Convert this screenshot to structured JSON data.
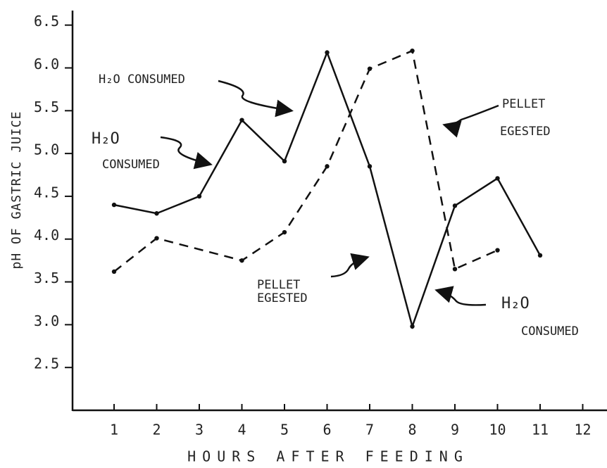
{
  "chart_data": {
    "type": "line",
    "ylabel": "pH OF GASTRIC JUICE",
    "xlabel": "HOURS AFTER FEEDING",
    "xlim": [
      0,
      12.57
    ],
    "xticks": [
      1,
      2,
      3,
      4,
      5,
      6,
      7,
      8,
      9,
      10,
      11,
      12
    ],
    "ylim": [
      2.0,
      6.67
    ],
    "yticks": [
      {
        "value": 2.5,
        "label": "2.5"
      },
      {
        "value": 3,
        "label": "3.0"
      },
      {
        "value": 3.5,
        "label": "3.5"
      },
      {
        "value": 4,
        "label": "4.0"
      },
      {
        "value": 4.5,
        "label": "4.5"
      },
      {
        "value": 5,
        "label": "5.0"
      },
      {
        "value": 5.5,
        "label": "5.5"
      },
      {
        "value": 6,
        "label": "6.0"
      },
      {
        "value": 6.5,
        "label": "6.5"
      }
    ],
    "series": [
      {
        "color": "#111111",
        "dashed": false,
        "x": [
          1,
          2,
          3,
          4,
          5,
          6,
          7,
          8,
          9,
          10,
          11
        ],
        "values": [
          4.4,
          4.3,
          4.5,
          5.39,
          4.91,
          6.18,
          4.85,
          2.98,
          4.39,
          4.71,
          3.81
        ]
      },
      {
        "color": "#111111",
        "dashed": true,
        "x": [
          1,
          2,
          4,
          5,
          6,
          7,
          8,
          9,
          10
        ],
        "values": [
          3.62,
          4.01,
          3.75,
          4.08,
          4.85,
          5.99,
          6.2,
          3.65,
          3.87
        ]
      }
    ],
    "annotations": [
      {
        "lines": [
          "H₂O CONSUMED"
        ]
      },
      {
        "lines": [
          "H₂O",
          "CONSUMED"
        ]
      },
      {
        "lines": [
          "PELLET",
          "EGESTED"
        ]
      },
      {
        "lines": [
          "PELLET",
          "EGESTED"
        ]
      },
      {
        "lines": [
          "H₂O",
          "CONSUMED"
        ]
      }
    ]
  }
}
